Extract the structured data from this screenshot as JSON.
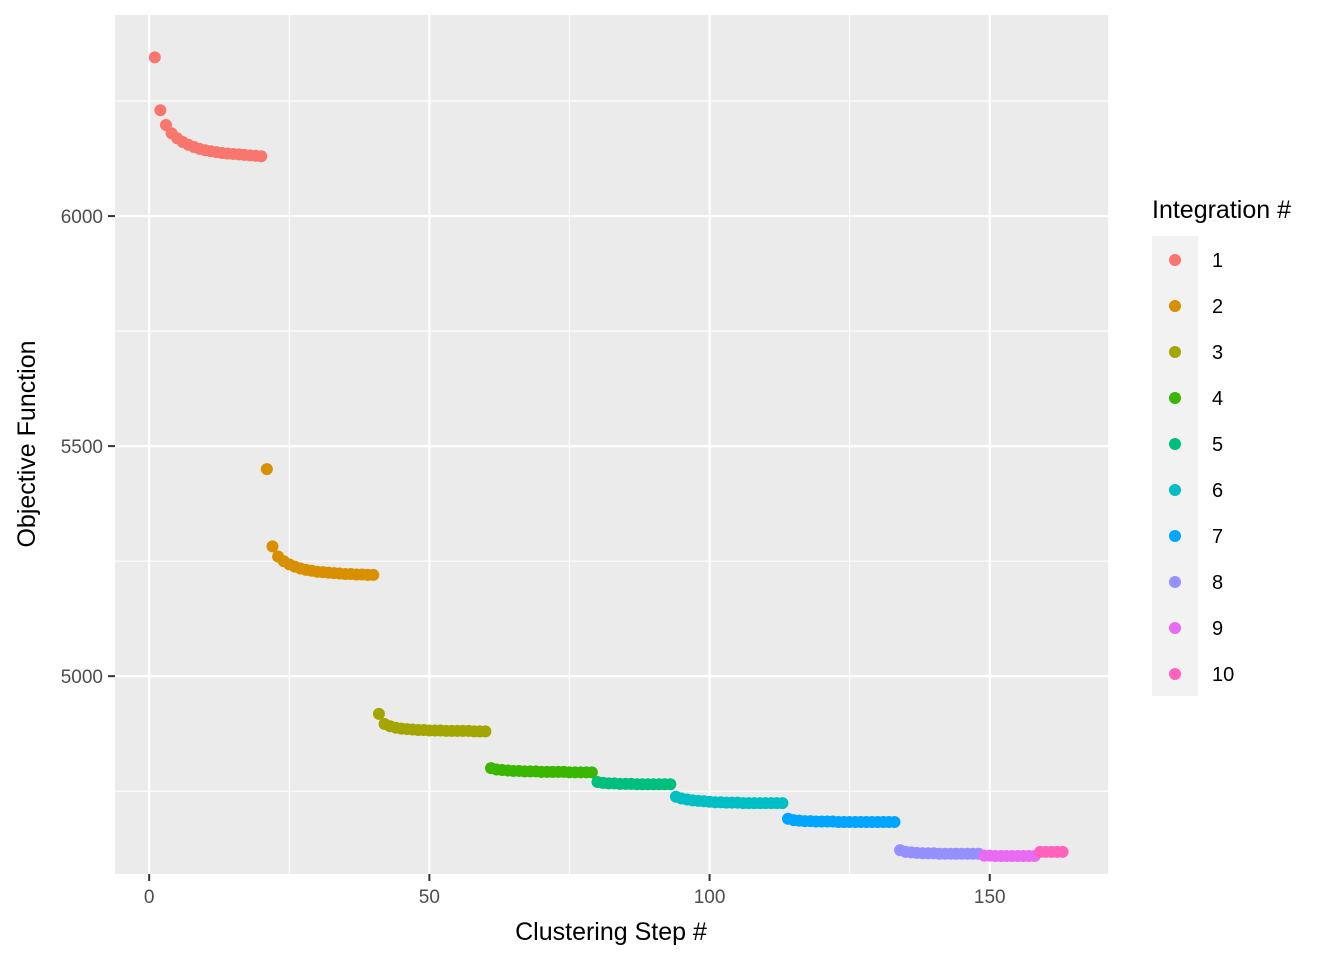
{
  "chart_data": {
    "type": "scatter",
    "title": "",
    "xlabel": "Clustering Step #",
    "ylabel": "Objective Function",
    "xlim": [
      -6.1,
      171.1
    ],
    "ylim": [
      4570,
      6437
    ],
    "x_ticks": [
      0,
      50,
      100,
      150
    ],
    "x_minor_ticks": [
      25,
      75,
      125
    ],
    "y_ticks": [
      5000,
      5500,
      6000
    ],
    "y_minor_ticks": [
      4750,
      5250,
      5750,
      6250
    ],
    "x_tick_labels": [
      "0",
      "50",
      "100",
      "150"
    ],
    "y_tick_labels": [
      "5000",
      "5500",
      "6000"
    ],
    "grid": true,
    "legend": {
      "title": "Integration #",
      "position": "right"
    },
    "series": [
      {
        "name": "1",
        "color": "#F8766D",
        "x": [
          1,
          2,
          3,
          4,
          5,
          6,
          7,
          8,
          9,
          10,
          11,
          12,
          13,
          14,
          15,
          16,
          17,
          18,
          19,
          20
        ],
        "y": [
          6345,
          6230,
          6198,
          6180,
          6169,
          6161,
          6155,
          6150,
          6146,
          6143,
          6141,
          6139,
          6137,
          6136,
          6135,
          6134,
          6133,
          6132,
          6131,
          6130
        ]
      },
      {
        "name": "2",
        "color": "#D89000",
        "x": [
          21,
          22,
          23,
          24,
          25,
          26,
          27,
          28,
          29,
          30,
          31,
          32,
          33,
          34,
          35,
          36,
          37,
          38,
          39,
          40
        ],
        "y": [
          5450,
          5282,
          5260,
          5250,
          5243,
          5238,
          5234,
          5231,
          5229,
          5227,
          5226,
          5225,
          5224,
          5223,
          5222,
          5222,
          5221,
          5221,
          5220,
          5220
        ]
      },
      {
        "name": "3",
        "color": "#A3A500",
        "x": [
          41,
          42,
          43,
          44,
          45,
          46,
          47,
          48,
          49,
          50,
          51,
          52,
          53,
          54,
          55,
          56,
          57,
          58,
          59,
          60
        ],
        "y": [
          4918,
          4896,
          4891,
          4888,
          4886,
          4885,
          4884,
          4883,
          4883,
          4882,
          4882,
          4882,
          4881,
          4881,
          4881,
          4881,
          4881,
          4880,
          4880,
          4880
        ]
      },
      {
        "name": "4",
        "color": "#39B600",
        "x": [
          61,
          62,
          63,
          64,
          65,
          66,
          67,
          68,
          69,
          70,
          71,
          72,
          73,
          74,
          75,
          76,
          77,
          78,
          79
        ],
        "y": [
          4800,
          4797,
          4796,
          4795,
          4794,
          4794,
          4793,
          4793,
          4793,
          4792,
          4792,
          4792,
          4792,
          4792,
          4791,
          4791,
          4791,
          4791,
          4791
        ]
      },
      {
        "name": "5",
        "color": "#00BF7D",
        "x": [
          80,
          81,
          82,
          83,
          84,
          85,
          86,
          87,
          88,
          89,
          90,
          91,
          92,
          93
        ],
        "y": [
          4770,
          4768,
          4767,
          4767,
          4766,
          4766,
          4766,
          4765,
          4765,
          4765,
          4765,
          4765,
          4765,
          4765
        ]
      },
      {
        "name": "6",
        "color": "#00BFC4",
        "x": [
          94,
          95,
          96,
          97,
          98,
          99,
          100,
          101,
          102,
          103,
          104,
          105,
          106,
          107,
          108,
          109,
          110,
          111,
          112,
          113
        ],
        "y": [
          4738,
          4734,
          4732,
          4730,
          4729,
          4728,
          4727,
          4726,
          4726,
          4725,
          4725,
          4725,
          4724,
          4724,
          4724,
          4724,
          4724,
          4724,
          4724,
          4724
        ]
      },
      {
        "name": "7",
        "color": "#00A5FF",
        "x": [
          114,
          115,
          116,
          117,
          118,
          119,
          120,
          121,
          122,
          123,
          124,
          125,
          126,
          127,
          128,
          129,
          130,
          131,
          132,
          133
        ],
        "y": [
          4690,
          4687,
          4686,
          4685,
          4685,
          4684,
          4684,
          4684,
          4684,
          4683,
          4683,
          4683,
          4683,
          4683,
          4683,
          4683,
          4683,
          4683,
          4683,
          4683
        ]
      },
      {
        "name": "8",
        "color": "#9590FF",
        "x": [
          134,
          135,
          136,
          137,
          138,
          139,
          140,
          141,
          142,
          143,
          144,
          145,
          146,
          147,
          148
        ],
        "y": [
          4622,
          4618,
          4617,
          4616,
          4615,
          4615,
          4615,
          4614,
          4614,
          4614,
          4614,
          4614,
          4614,
          4614,
          4614
        ]
      },
      {
        "name": "9",
        "color": "#E76BF3",
        "x": [
          149,
          150,
          151,
          152,
          153,
          154,
          155,
          156,
          157,
          158
        ],
        "y": [
          4610,
          4610,
          4609,
          4609,
          4609,
          4609,
          4609,
          4609,
          4609,
          4609
        ]
      },
      {
        "name": "10",
        "color": "#FF62BC",
        "x": [
          159,
          160,
          161,
          162,
          163
        ],
        "y": [
          4618,
          4618,
          4618,
          4618,
          4618
        ]
      }
    ]
  }
}
